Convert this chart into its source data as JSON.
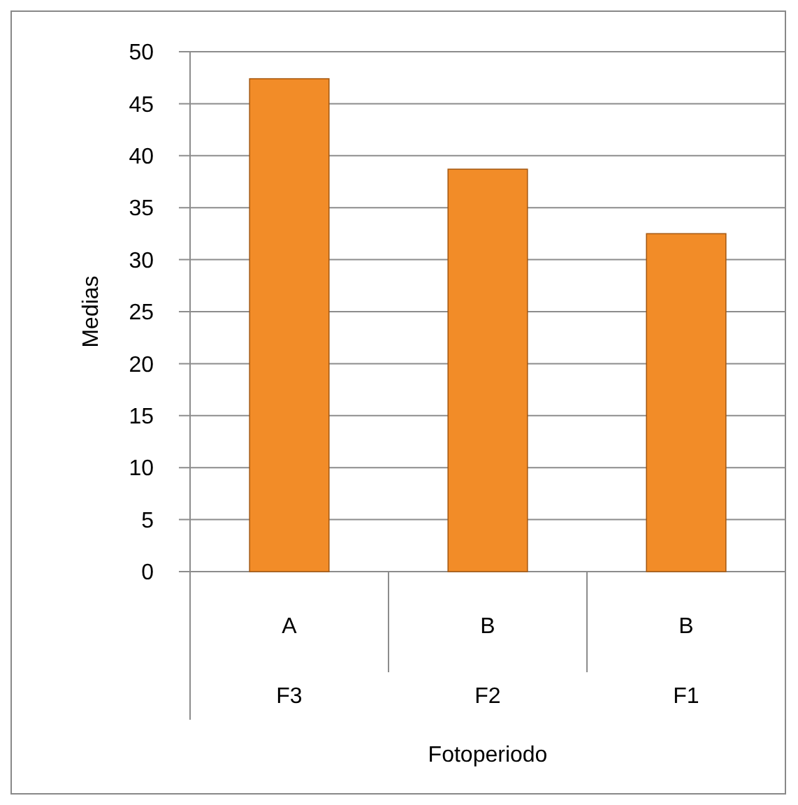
{
  "chart_data": {
    "type": "bar",
    "xlabel": "Fotoperiodo",
    "ylabel": "Medias",
    "categories": [
      "F3",
      "F2",
      "F1"
    ],
    "values": [
      47.4,
      38.7,
      32.5
    ],
    "color": "#f28c28",
    "ylim": [
      0,
      50
    ],
    "yticks": [
      0,
      5,
      10,
      15,
      20,
      25,
      30,
      35,
      40,
      45,
      50
    ],
    "grid": "y",
    "annotations": [
      "A",
      "B",
      "B"
    ]
  }
}
